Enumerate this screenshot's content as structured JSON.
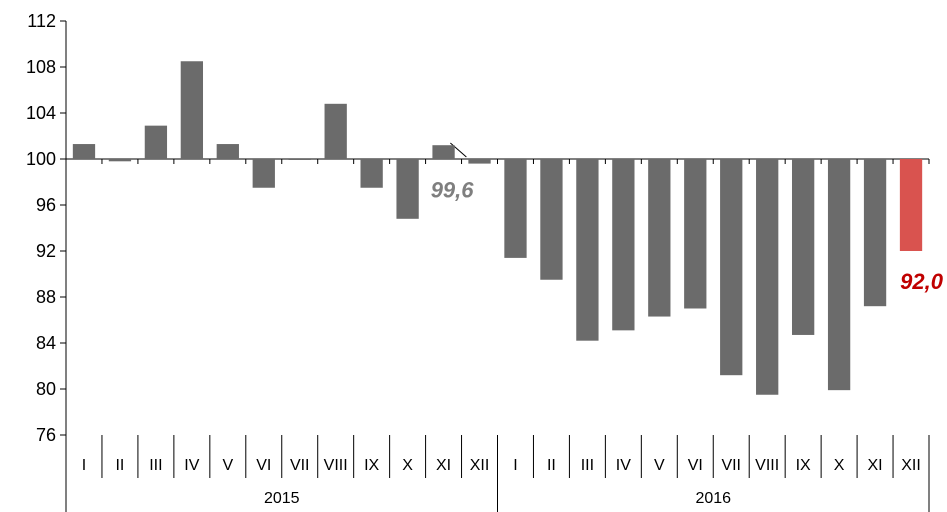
{
  "chart_data": {
    "type": "bar",
    "baseline": 100,
    "ylim": [
      76,
      112
    ],
    "yticks": [
      "112",
      "108",
      "104",
      "100",
      "96",
      "92",
      "88",
      "84",
      "80",
      "76"
    ],
    "categories": [
      "I",
      "II",
      "III",
      "IV",
      "V",
      "VI",
      "VII",
      "VIII",
      "IX",
      "X",
      "XI",
      "XII",
      "I",
      "II",
      "III",
      "IV",
      "V",
      "VI",
      "VII",
      "VIII",
      "IX",
      "X",
      "XI",
      "XII"
    ],
    "groups": [
      {
        "label": "2015",
        "count": 12
      },
      {
        "label": "2016",
        "count": 12
      }
    ],
    "values": [
      101.3,
      99.8,
      102.9,
      108.5,
      101.3,
      97.5,
      100.0,
      104.8,
      97.5,
      94.8,
      101.2,
      99.6,
      91.4,
      89.5,
      84.2,
      85.1,
      86.3,
      87.0,
      81.2,
      79.5,
      84.7,
      79.9,
      87.2,
      92.0
    ],
    "colors": {
      "default": "#6b6b6b",
      "highlight": "#d9534f"
    },
    "highlight_index": 23,
    "annotations": [
      {
        "index": 11,
        "text": "99,6",
        "color": "#7f7f7f"
      },
      {
        "index": 23,
        "text": "92,0",
        "color": "#c00000"
      }
    ]
  }
}
